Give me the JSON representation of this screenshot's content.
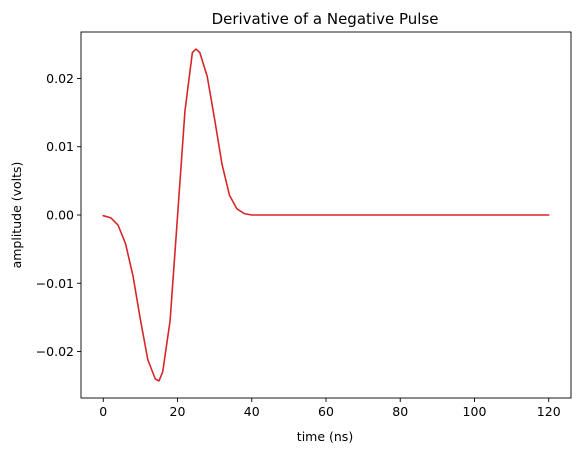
{
  "chart_data": {
    "type": "line",
    "title": "Derivative of a Negative Pulse",
    "xlabel": "time (ns)",
    "ylabel": "amplitude (volts)",
    "xlim": [
      -6,
      126
    ],
    "ylim": [
      -0.0268,
      0.0268
    ],
    "xticks": [
      0,
      20,
      40,
      60,
      80,
      100,
      120
    ],
    "xtick_labels": [
      "0",
      "20",
      "40",
      "60",
      "80",
      "100",
      "120"
    ],
    "yticks": [
      -0.02,
      -0.01,
      0.0,
      0.01,
      0.02
    ],
    "ytick_labels": [
      "−0.02",
      "−0.01",
      "0.00",
      "0.01",
      "0.02"
    ],
    "grid": false,
    "series": [
      {
        "color": "#d62728",
        "x": [
          0,
          2,
          4,
          6,
          8,
          10,
          12,
          14,
          15,
          16,
          18,
          20,
          22,
          24,
          25,
          26,
          28,
          30,
          32,
          34,
          36,
          38,
          40,
          45,
          50,
          60,
          80,
          100,
          120
        ],
        "y": [
          -0.0001,
          -0.0004,
          -0.0015,
          -0.0042,
          -0.0089,
          -0.0153,
          -0.0212,
          -0.024,
          -0.0243,
          -0.023,
          -0.0155,
          -0.0002,
          0.0152,
          0.0238,
          0.0243,
          0.0238,
          0.0203,
          0.014,
          0.0074,
          0.0029,
          0.0009,
          0.0002,
          0.0,
          0.0,
          0.0,
          0.0,
          0.0,
          0.0,
          0.0
        ]
      }
    ]
  }
}
